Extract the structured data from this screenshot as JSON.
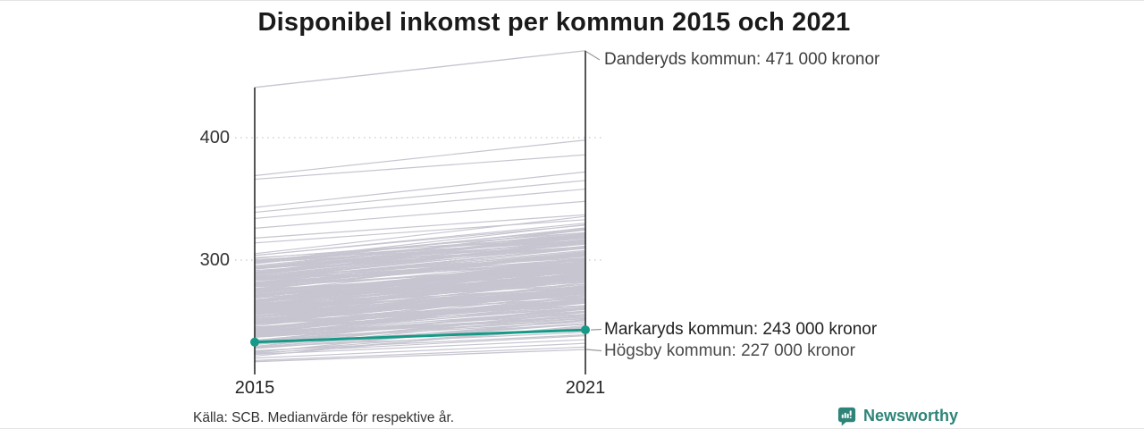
{
  "title": "Disponibel inkomst per kommun 2015 och 2021",
  "source_note": "Källa: SCB. Medianvärde för respektive år.",
  "branding": {
    "name": "Newsworthy",
    "color": "#2e8478"
  },
  "axis": {
    "x_left": "2015",
    "x_right": "2021",
    "y_tick_top": "400",
    "y_tick_bottom": "300"
  },
  "annotations": {
    "danderyd": "Danderyds kommun: 471 000 kronor",
    "markaryd": "Markaryds kommun: 243 000 kronor",
    "hogsby": "Högsby kommun: 227 000 kronor"
  },
  "chart_data": {
    "type": "line",
    "subtype": "slopegraph",
    "title": "Disponibel inkomst per kommun 2015 och 2021",
    "x": [
      2015,
      2021
    ],
    "unit_hint": "values shown as tusen kronor on axis, labels read in kronor",
    "y_ticks": [
      400,
      300
    ],
    "ylim": [
      212,
      478
    ],
    "grid": "dotted horizontal at ticks",
    "legend_position": "none",
    "series_labeled": [
      {
        "name": "Danderyds kommun",
        "values": [
          441,
          471
        ],
        "label_value_2021": "471 000 kronor",
        "note": "2015 value estimated from pixels"
      },
      {
        "name": "Markaryds kommun",
        "values": [
          233,
          243
        ],
        "label_value_2021": "243 000 kronor",
        "highlight": true,
        "color": "#169a87"
      },
      {
        "name": "Högsby kommun",
        "values": [
          217,
          227
        ],
        "label_value_2021": "227 000 kronor"
      }
    ],
    "background_series": {
      "description": "unlabeled Swedish municipalities, endpoints estimated from pixels",
      "color": "#c6c5d0",
      "outlier_lines": [
        [
          369,
          398
        ],
        [
          366,
          386
        ],
        [
          343,
          372
        ],
        [
          339,
          365
        ],
        [
          334,
          358
        ],
        [
          326,
          348
        ],
        [
          318,
          337
        ],
        [
          314,
          333
        ],
        [
          218,
          229
        ],
        [
          220,
          232
        ],
        [
          223,
          235
        ],
        [
          226,
          239
        ],
        [
          229,
          241
        ]
      ],
      "dense_band": {
        "count": 270,
        "v2015_min": 220,
        "v2015_max": 310,
        "delta_min": 14,
        "delta_max": 33,
        "seed": 7
      }
    }
  }
}
